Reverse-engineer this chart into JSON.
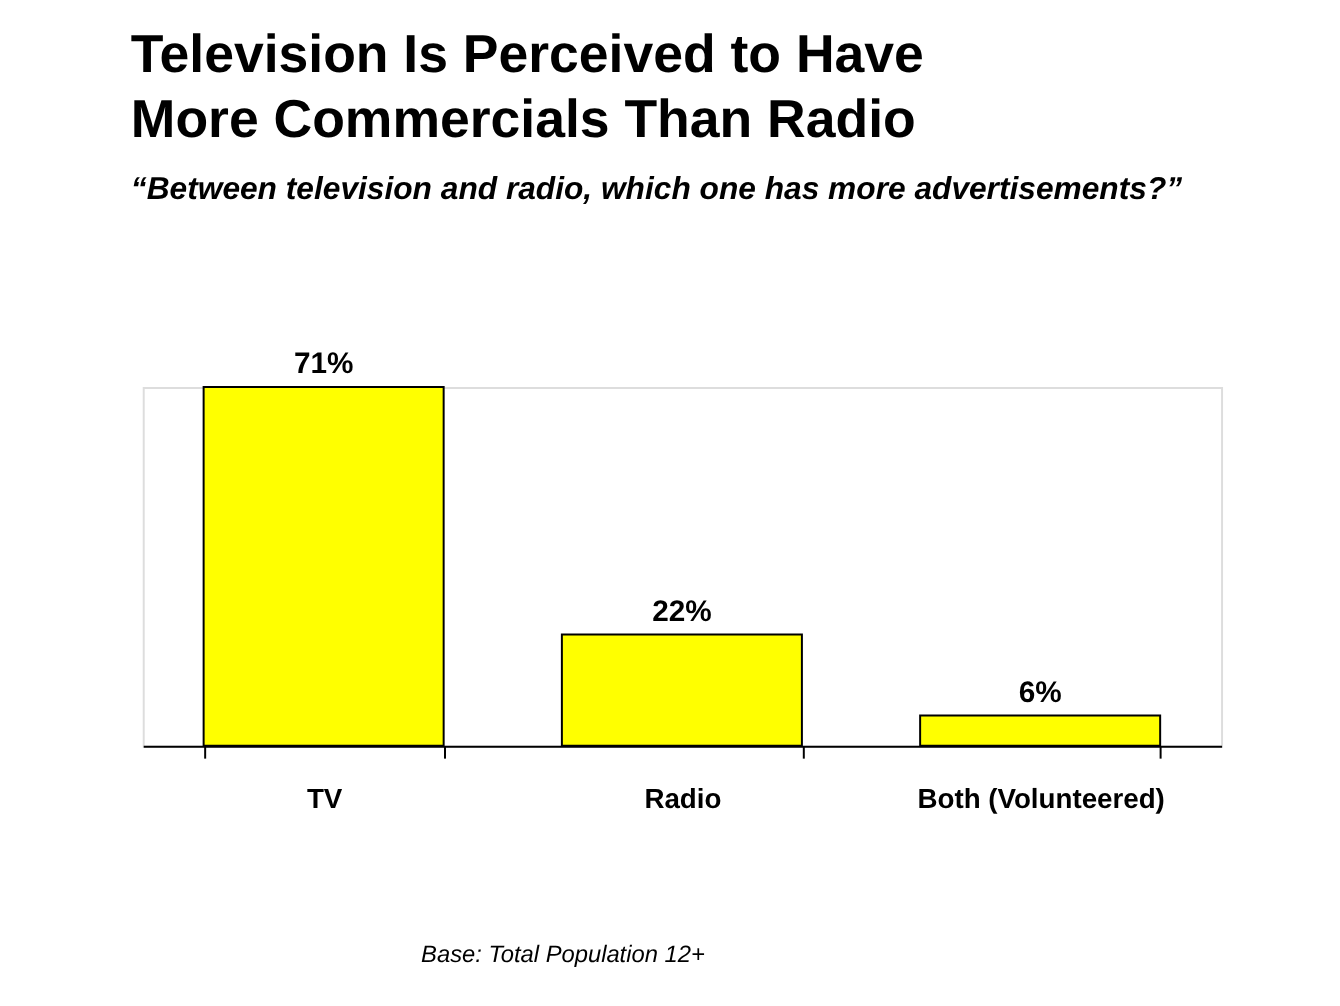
{
  "chart_data": {
    "type": "bar",
    "title": [
      "Television Is Perceived to Have",
      "More Commercials Than Radio"
    ],
    "subtitle": "“Between television and radio, which one has more advertisements?”",
    "categories": [
      "TV",
      "Radio",
      "Both (Volunteered)"
    ],
    "values": [
      71,
      22,
      6
    ],
    "color": "#ffff00",
    "value_labels": [
      "71%",
      "22%",
      "6%"
    ],
    "grid": false,
    "annotations": [
      "Base:  Total Population 12+"
    ]
  }
}
